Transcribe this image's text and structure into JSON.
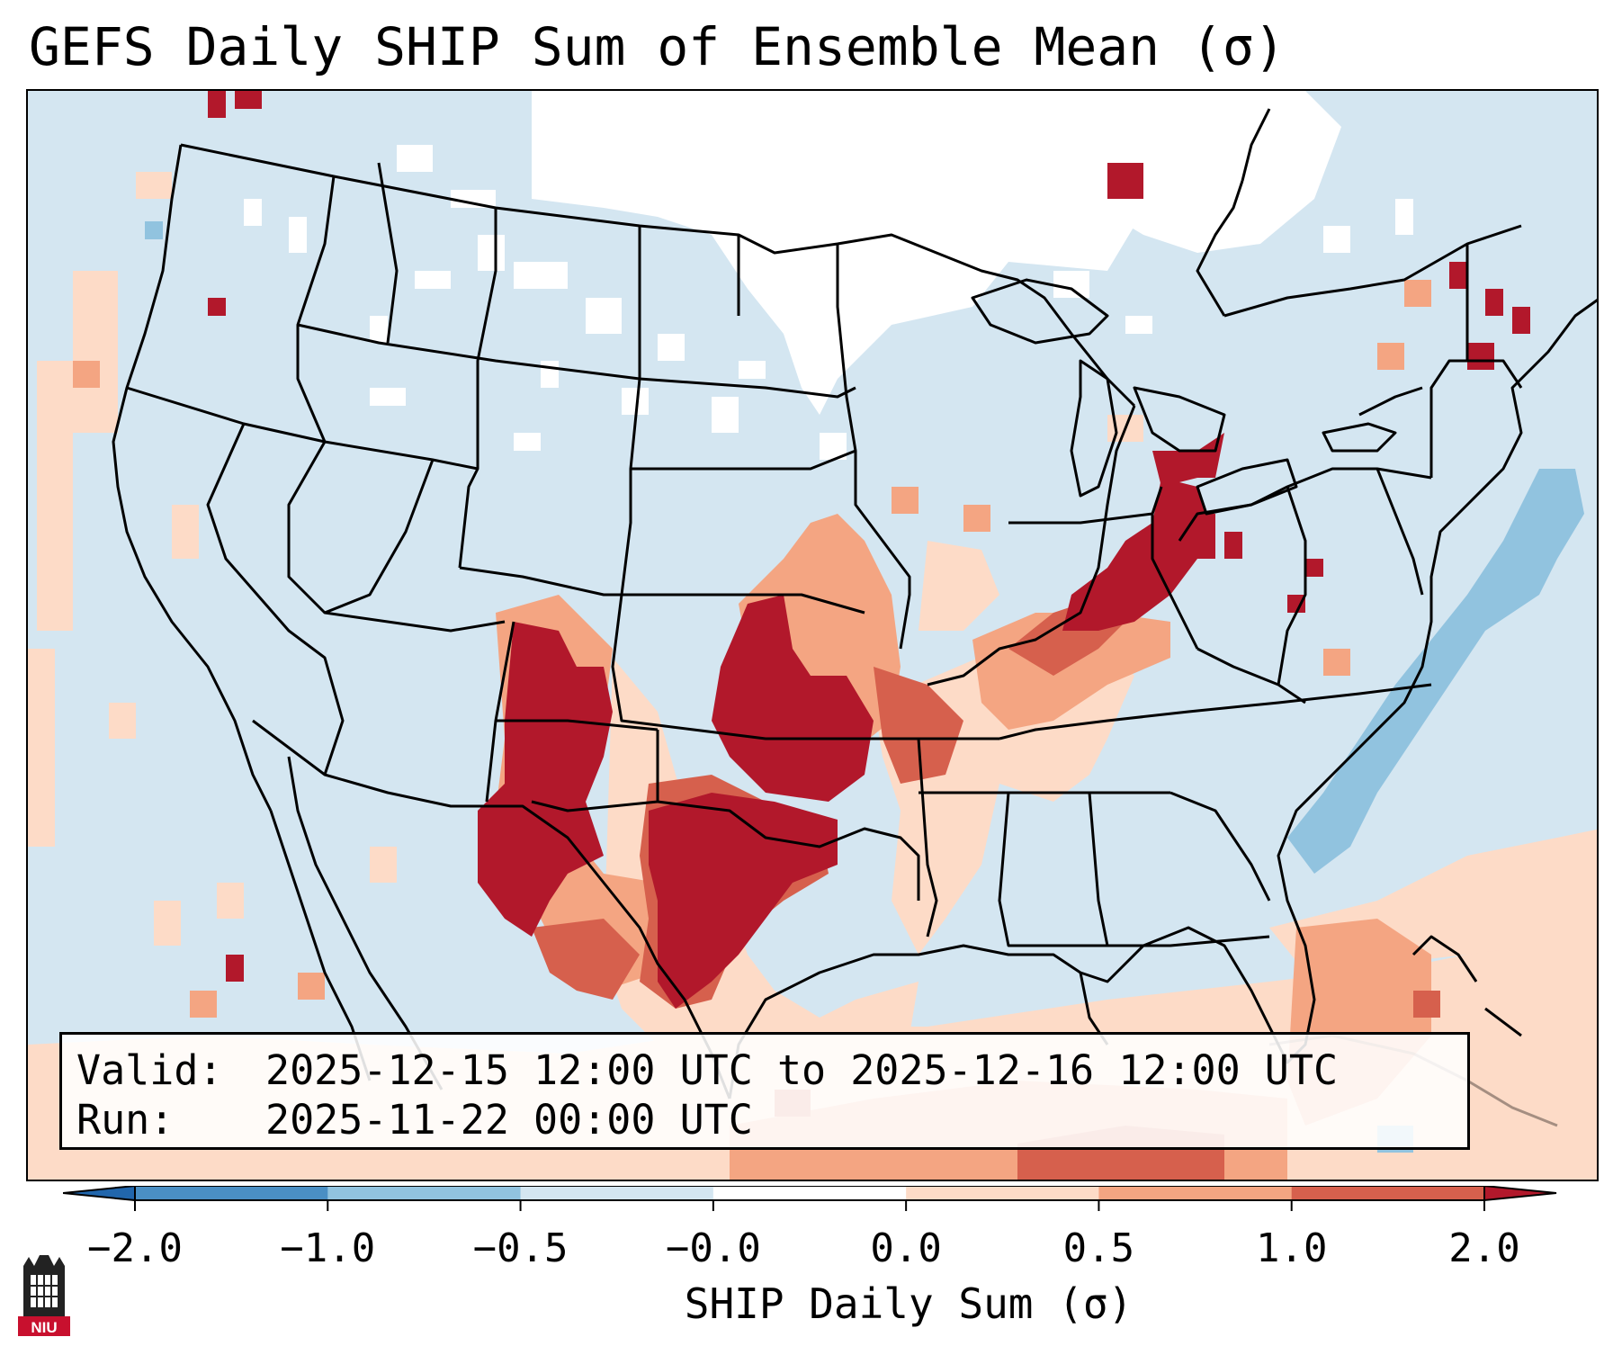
{
  "title": "GEFS Daily SHIP Sum of Ensemble Mean (σ)",
  "info": {
    "valid_label": "Valid:",
    "valid_value": "2025-12-15 12:00 UTC to 2025-12-16 12:00 UTC",
    "run_label": "Run:",
    "run_value": "2025-11-22 00:00 UTC"
  },
  "colorbar": {
    "label": "SHIP Daily Sum (σ)",
    "ticks": [
      "−2.0",
      "−1.0",
      "−0.5",
      "−0.0",
      "0.0",
      "0.5",
      "1.0",
      "2.0"
    ],
    "bins": [
      {
        "from": "−2.0",
        "to": "−1.0",
        "color": "#4a8fc4"
      },
      {
        "from": "−1.0",
        "to": "−0.5",
        "color": "#91c3df"
      },
      {
        "from": "−0.5",
        "to": "−0.0",
        "color": "#d4e6f1"
      },
      {
        "from": "−0.0",
        "to": "0.0",
        "color": "#ffffff"
      },
      {
        "from": "0.0",
        "to": "0.5",
        "color": "#fddbc7"
      },
      {
        "from": "0.5",
        "to": "1.0",
        "color": "#f4a582"
      },
      {
        "from": "1.0",
        "to": "2.0",
        "color": "#d6604d"
      }
    ],
    "under_color": "#2166ac",
    "over_color": "#b2182b"
  },
  "colors": {
    "white_bin": "#ffffff",
    "light_blue": "#d4e6f1",
    "mid_blue": "#91c3df",
    "light_red": "#fddbc7",
    "mid_red": "#f4a582",
    "red": "#d6604d",
    "dark_red": "#b2182b",
    "borders": "#000000"
  },
  "logo": {
    "text": "NIU",
    "icon": "university-tower-icon"
  }
}
